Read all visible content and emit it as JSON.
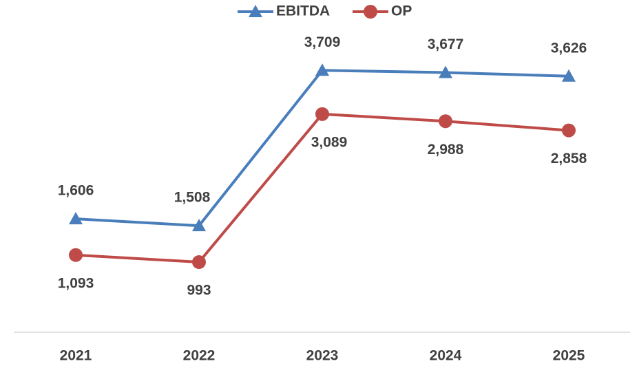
{
  "chart_data": {
    "type": "line",
    "categories": [
      "2021",
      "2022",
      "2023",
      "2024",
      "2025"
    ],
    "series": [
      {
        "name": "EBITDA",
        "color": "#4a7ebb",
        "marker": "triangle",
        "values": [
          1606,
          1508,
          3709,
          3677,
          3626
        ],
        "value_labels": [
          "1,606",
          "1,508",
          "3,709",
          "3,677",
          "3,626"
        ]
      },
      {
        "name": "OP",
        "color": "#be4b48",
        "marker": "circle",
        "values": [
          1093,
          993,
          3089,
          2988,
          2858
        ],
        "value_labels": [
          "1,093",
          "993",
          "3,089",
          "2,988",
          "2,858"
        ]
      }
    ],
    "ylim": [
      0,
      4500
    ],
    "legend": "top"
  }
}
